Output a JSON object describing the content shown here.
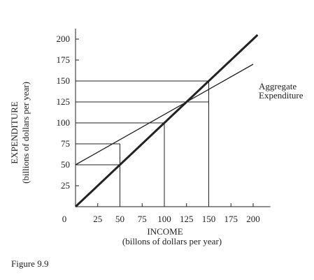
{
  "chart_data": {
    "type": "line",
    "xlabel": "INCOME",
    "xlabel_sub": "(billons of dollars per year)",
    "ylabel": "EXPENDITURE",
    "ylabel_sub": "(billions of dollars per year)",
    "xlim": [
      0,
      210
    ],
    "ylim": [
      0,
      210
    ],
    "origin_label": "0",
    "x_ticks": [
      25,
      50,
      75,
      100,
      125,
      150,
      175,
      200
    ],
    "x_tick_labels": [
      "25",
      "50",
      "75",
      "100",
      "125",
      "150",
      "175",
      "200"
    ],
    "y_ticks": [
      25,
      50,
      75,
      100,
      125,
      150,
      175,
      200
    ],
    "y_tick_labels": [
      "25",
      "50",
      "75",
      "100",
      "125",
      "150",
      "175",
      "200"
    ],
    "series": [
      {
        "name": "",
        "style": "bold",
        "x": [
          0,
          205
        ],
        "y": [
          0,
          205
        ]
      },
      {
        "name": "Aggregate Expenditure",
        "style": "thin",
        "x": [
          0,
          200
        ],
        "y": [
          50,
          170
        ]
      }
    ],
    "series_label_lines": [
      "Aggregate",
      "Expenditure"
    ],
    "reference_lines": [
      {
        "x": 50,
        "y": 50
      },
      {
        "x": 50,
        "y": 75
      },
      {
        "x": 100,
        "y": 100
      },
      {
        "x": 150,
        "y": 125
      },
      {
        "x": 150,
        "y": 150
      }
    ],
    "grid": false
  },
  "caption": "Figure 9.9"
}
